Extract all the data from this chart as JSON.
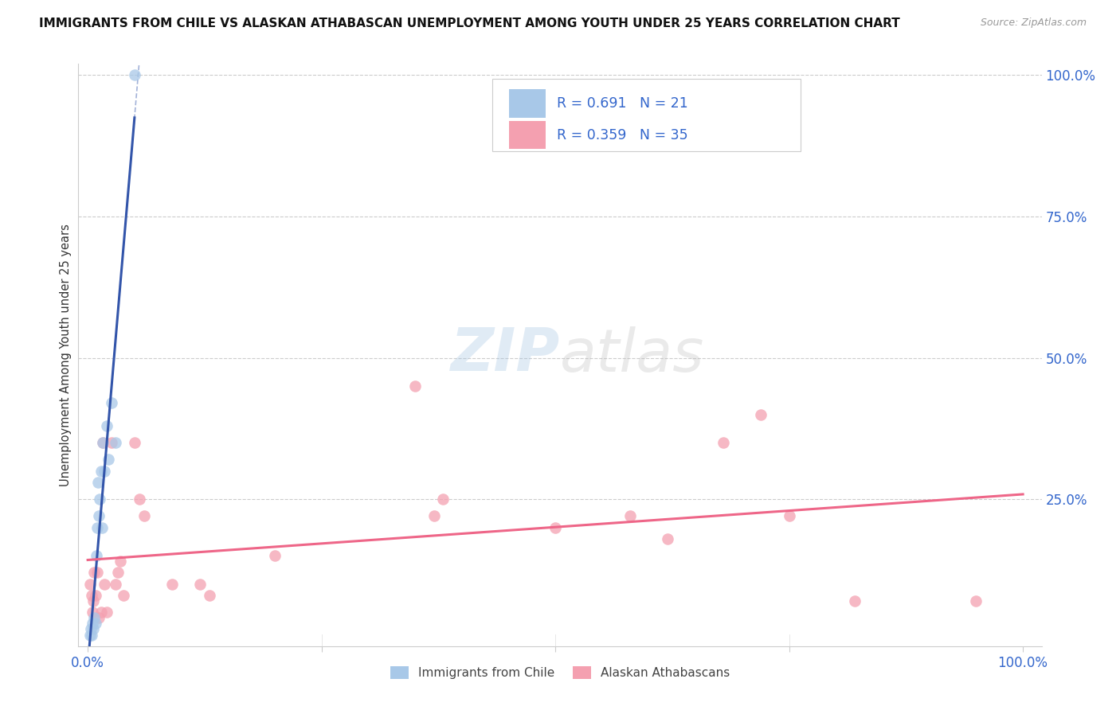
{
  "title": "IMMIGRANTS FROM CHILE VS ALASKAN ATHABASCAN UNEMPLOYMENT AMONG YOUTH UNDER 25 YEARS CORRELATION CHART",
  "source": "Source: ZipAtlas.com",
  "ylabel": "Unemployment Among Youth under 25 years",
  "legend_label1": "Immigrants from Chile",
  "legend_label2": "Alaskan Athabascans",
  "R1": "0.691",
  "N1": "21",
  "R2": "0.359",
  "N2": "35",
  "color_blue": "#A8C8E8",
  "color_pink": "#F4A0B0",
  "color_blue_line": "#3355AA",
  "color_pink_line": "#EE6688",
  "color_blue_text": "#3366CC",
  "watermark_color": "#C8DDF0",
  "blue_scatter_x": [
    0.002,
    0.003,
    0.004,
    0.005,
    0.006,
    0.007,
    0.008,
    0.009,
    0.01,
    0.011,
    0.012,
    0.013,
    0.014,
    0.015,
    0.016,
    0.018,
    0.02,
    0.022,
    0.025,
    0.03,
    0.05
  ],
  "blue_scatter_y": [
    0.01,
    0.02,
    0.01,
    0.03,
    0.02,
    0.04,
    0.03,
    0.15,
    0.2,
    0.28,
    0.22,
    0.25,
    0.3,
    0.2,
    0.35,
    0.3,
    0.38,
    0.32,
    0.42,
    0.35,
    1.0
  ],
  "pink_scatter_x": [
    0.002,
    0.004,
    0.005,
    0.006,
    0.007,
    0.008,
    0.01,
    0.012,
    0.014,
    0.016,
    0.018,
    0.02,
    0.025,
    0.03,
    0.032,
    0.035,
    0.038,
    0.05,
    0.055,
    0.06,
    0.09,
    0.12,
    0.13,
    0.2,
    0.35,
    0.37,
    0.38,
    0.5,
    0.58,
    0.62,
    0.68,
    0.72,
    0.75,
    0.82,
    0.95
  ],
  "pink_scatter_y": [
    0.1,
    0.08,
    0.05,
    0.07,
    0.12,
    0.08,
    0.12,
    0.04,
    0.05,
    0.35,
    0.1,
    0.05,
    0.35,
    0.1,
    0.12,
    0.14,
    0.08,
    0.35,
    0.25,
    0.22,
    0.1,
    0.1,
    0.08,
    0.15,
    0.45,
    0.22,
    0.25,
    0.2,
    0.22,
    0.18,
    0.35,
    0.4,
    0.22,
    0.07,
    0.07
  ],
  "xlim": [
    0.0,
    1.0
  ],
  "ylim": [
    0.0,
    1.0
  ],
  "xticks": [
    0.0,
    0.25,
    0.5,
    0.75,
    1.0
  ],
  "xtick_labels": [
    "0.0%",
    "",
    "",
    "",
    "100.0%"
  ],
  "yticks_right": [
    0.25,
    0.5,
    0.75,
    1.0
  ],
  "ytick_labels_right": [
    "25.0%",
    "50.0%",
    "75.0%",
    "100.0%"
  ]
}
